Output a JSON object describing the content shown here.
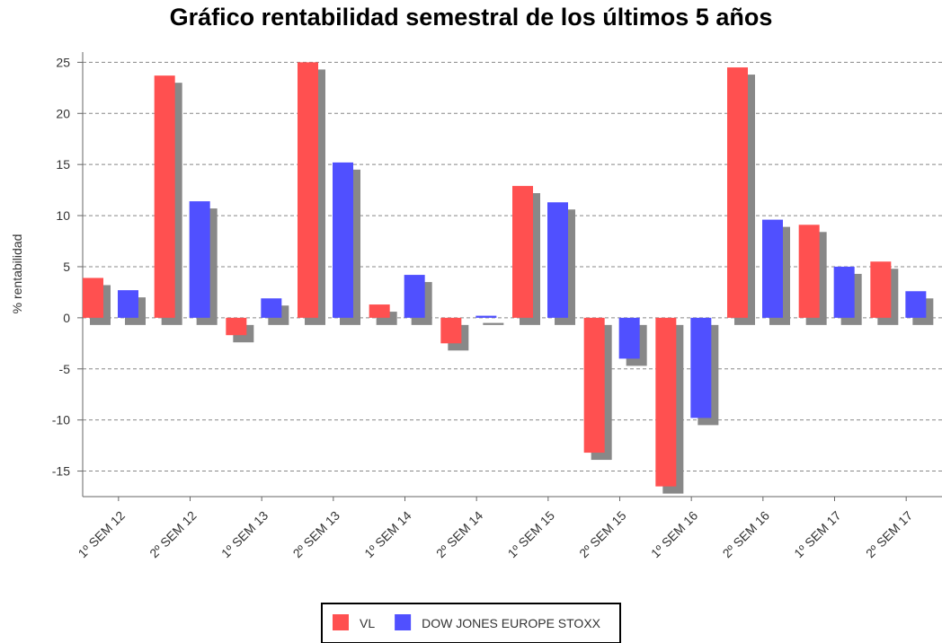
{
  "chart_data": {
    "type": "bar",
    "title": "Gráfico rentabilidad semestral de los últimos 5 años",
    "y_label": "% rentabilidad",
    "categories": [
      "1º SEM 12",
      "2º SEM 12",
      "1º SEM 13",
      "2º SEM 13",
      "1º SEM 14",
      "2º SEM 14",
      "1º SEM 15",
      "2º SEM 15",
      "1º SEM 16",
      "2º SEM 16",
      "1º SEM 17",
      "2º SEM 17"
    ],
    "series": [
      {
        "name": "VL",
        "color": "#ff5050",
        "values": [
          3.9,
          23.7,
          -1.7,
          25,
          1.3,
          -2.5,
          12.9,
          -13.2,
          -16.5,
          24.5,
          9.1,
          5.5
        ]
      },
      {
        "name": "DOW JONES EUROPE STOXX",
        "color": "#5050ff",
        "values": [
          2.7,
          11.4,
          1.9,
          15.2,
          4.2,
          0.2,
          11.3,
          -4,
          -9.8,
          9.6,
          5,
          2.6
        ]
      }
    ],
    "ylim": [
      -17.5,
      26
    ],
    "yticks": [
      -15,
      -10,
      -5,
      0,
      5,
      10,
      15,
      20,
      25
    ],
    "grid": true,
    "legend": "bottom"
  }
}
